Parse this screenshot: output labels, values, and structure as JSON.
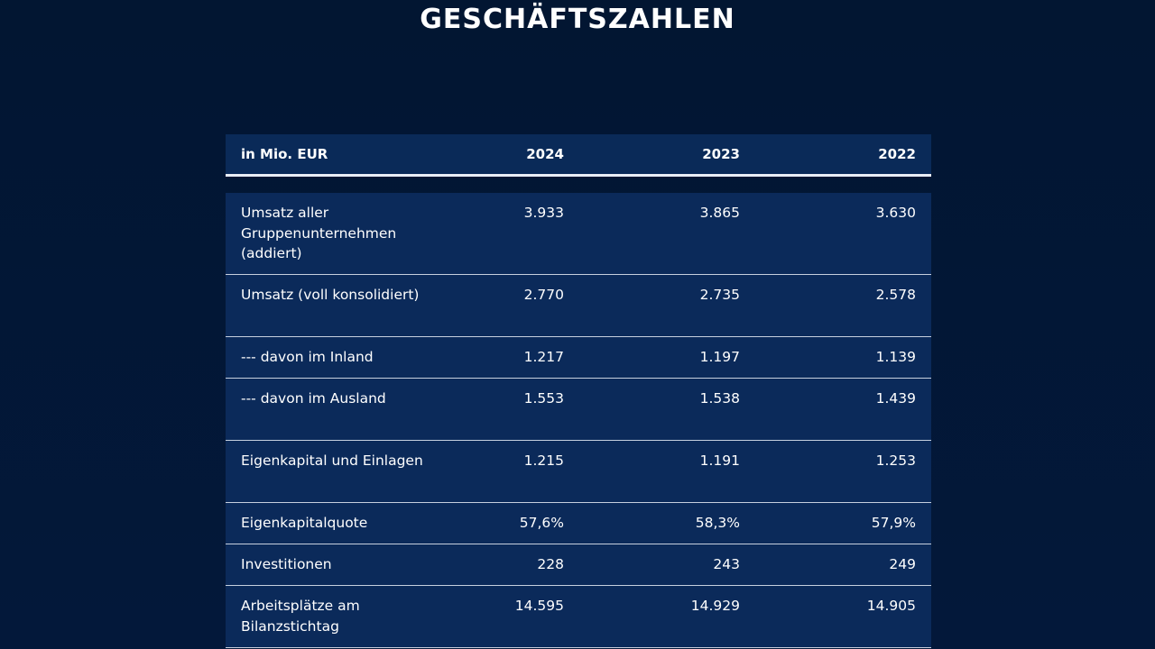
{
  "title": "GESCHÄFTSZAHLEN",
  "table": {
    "header": {
      "unit": "in Mio. EUR",
      "years": [
        "2024",
        "2023",
        "2022"
      ]
    },
    "rows": [
      {
        "label": "Umsatz aller Gruppenunternehmen (addiert)",
        "values": [
          "3.933",
          "3.865",
          "3.630"
        ]
      },
      {
        "label": "Umsatz (voll konsolidiert)",
        "values": [
          "2.770",
          "2.735",
          "2.578"
        ]
      },
      {
        "label": "--- davon im Inland",
        "values": [
          "1.217",
          "1.197",
          "1.139"
        ]
      },
      {
        "label": "--- davon im Ausland",
        "values": [
          "1.553",
          "1.538",
          "1.439"
        ]
      },
      {
        "label": "Eigenkapital und Einlagen",
        "values": [
          "1.215",
          "1.191",
          "1.253"
        ]
      },
      {
        "label": "Eigenkapitalquote",
        "values": [
          "57,6%",
          "58,3%",
          "57,9%"
        ]
      },
      {
        "label": "Investitionen",
        "values": [
          "228",
          "243",
          "249"
        ]
      },
      {
        "label": "Arbeitsplätze am Bilanzstichtag",
        "values": [
          "14.595",
          "14.929",
          "14.905"
        ]
      }
    ]
  }
}
